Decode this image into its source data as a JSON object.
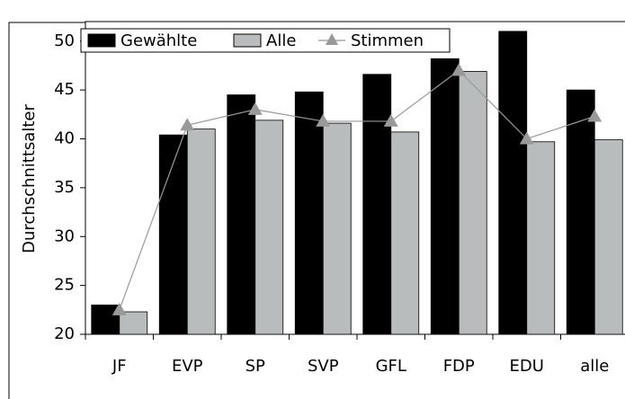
{
  "chart_data": {
    "type": "bar",
    "y_label": "Durchschnittsalter",
    "categories": [
      "JF",
      "EVP",
      "SP",
      "SVP",
      "GFL",
      "FDP",
      "EDU",
      "alle"
    ],
    "series": [
      {
        "name": "Gewählte",
        "type": "bar",
        "color": "#000000",
        "values": [
          23.0,
          40.4,
          44.5,
          44.8,
          46.6,
          48.2,
          51.0,
          45.0
        ]
      },
      {
        "name": "Alle",
        "type": "bar",
        "color": "#b8bcbc",
        "values": [
          22.3,
          41.0,
          41.9,
          41.6,
          40.7,
          46.9,
          39.7,
          39.9
        ]
      },
      {
        "name": "Stimmen",
        "type": "line",
        "color": "#999999",
        "values": [
          22.5,
          41.4,
          43.0,
          41.8,
          41.8,
          47.0,
          40.0,
          42.3
        ]
      }
    ],
    "ylim": [
      20,
      52
    ],
    "yticks": [
      20,
      25,
      30,
      35,
      40,
      45,
      50
    ],
    "legend": "top-left"
  }
}
